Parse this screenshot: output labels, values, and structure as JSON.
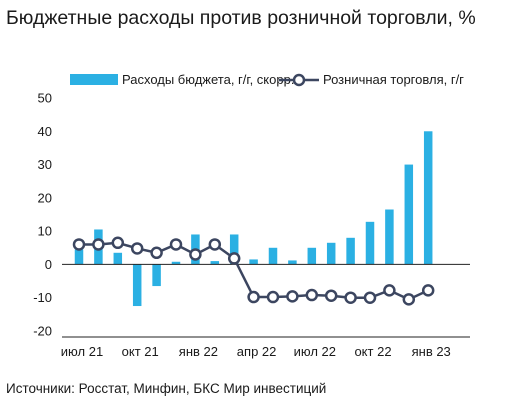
{
  "title": "Бюджетные расходы против розничной торговли, %",
  "source": "Источники: Росстат, Минфин, БКС Мир инвестиций",
  "colors": {
    "bar": "#2bb0e3",
    "line": "#3c4660",
    "marker_fill": "#ffffff",
    "text": "#1a1a1a"
  },
  "chart_data": {
    "type": "bar+line",
    "ylim": [
      -20,
      50
    ],
    "yticks": [
      -20,
      -10,
      0,
      10,
      20,
      30,
      40,
      50
    ],
    "xtick_labels": [
      "июл 21",
      "окт 21",
      "янв 22",
      "апр 22",
      "июл 22",
      "окт 22",
      "янв 23"
    ],
    "legend_placement": "top",
    "grid": false,
    "series": [
      {
        "name": "Расходы бюджета, г/г, скорр.",
        "type": "bar",
        "values": [
          4.5,
          10.5,
          3.5,
          -12.5,
          -6.5,
          0.8,
          9,
          1,
          9,
          1.5,
          5,
          1.2,
          5,
          6.5,
          8,
          12.8,
          16.5,
          30,
          40
        ]
      },
      {
        "name": "Розничная торговля, г/г",
        "type": "line",
        "values": [
          6,
          6,
          6.5,
          4.8,
          3.5,
          6,
          3,
          6,
          1.8,
          -9.8,
          -9.8,
          -9.6,
          -9.2,
          -9.4,
          -10,
          -10,
          -7.8,
          -10.5,
          -7.8
        ]
      }
    ]
  }
}
